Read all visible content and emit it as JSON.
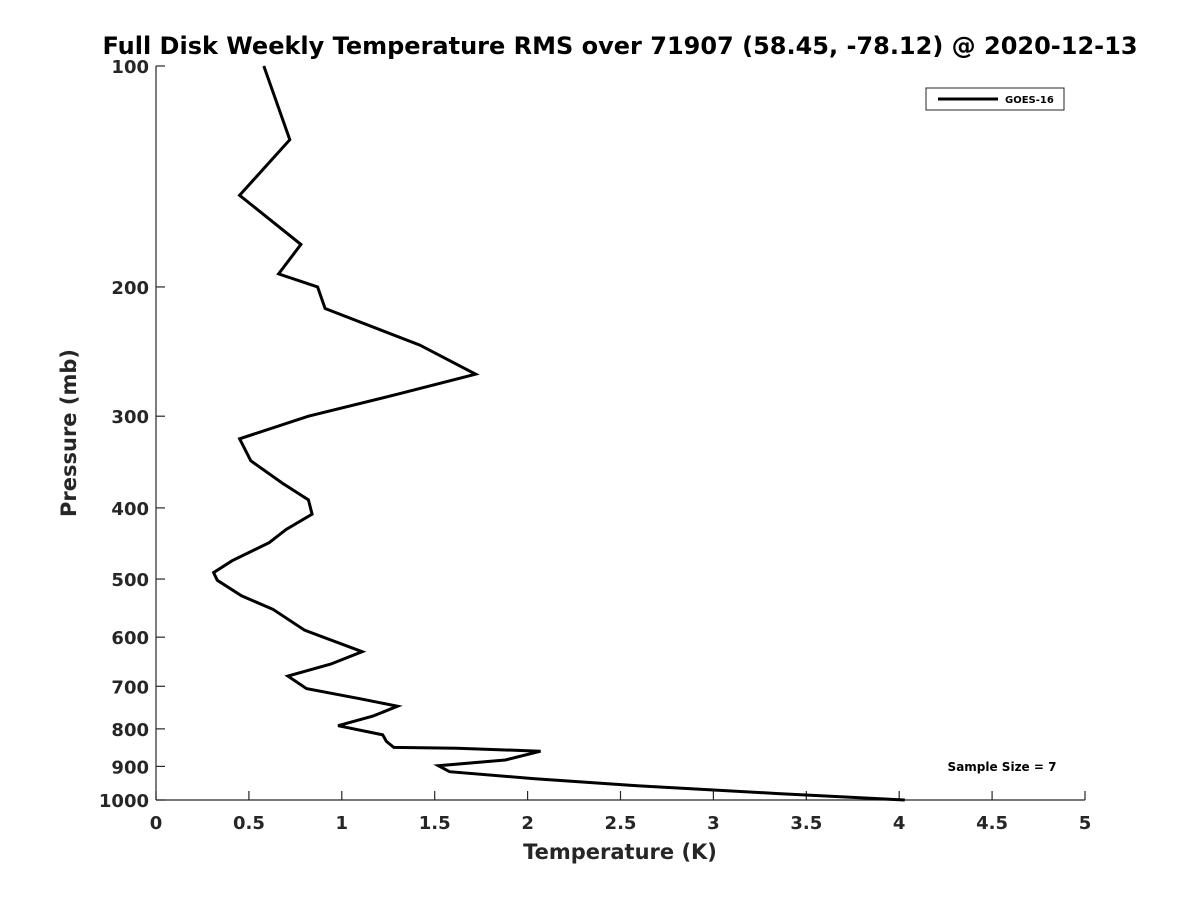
{
  "chart_data": {
    "type": "line",
    "title": "Full Disk Weekly Temperature RMS over 71907 (58.45, -78.12) @ 2020-12-13",
    "xlabel": "Temperature (K)",
    "ylabel": "Pressure (mb)",
    "xlim": [
      0,
      5
    ],
    "ylim": [
      100,
      1000
    ],
    "y_scale": "log",
    "y_reversed": true,
    "x_ticks": [
      0,
      0.5,
      1,
      1.5,
      2,
      2.5,
      3,
      3.5,
      4,
      4.5,
      5
    ],
    "x_tick_labels": [
      "0",
      "0.5",
      "1",
      "1.5",
      "2",
      "2.5",
      "3",
      "3.5",
      "4",
      "4.5",
      "5"
    ],
    "y_ticks": [
      100,
      200,
      300,
      400,
      500,
      600,
      700,
      800,
      900,
      1000
    ],
    "y_tick_labels": [
      "100",
      "200",
      "300",
      "400",
      "500",
      "600",
      "700",
      "800",
      "900",
      "1000"
    ],
    "grid": false,
    "legend_position": "top-right",
    "annotation": "Sample Size = 7",
    "series": [
      {
        "name": "GOES-16",
        "color": "#000000",
        "points": [
          [
            0.58,
            100
          ],
          [
            0.72,
            126
          ],
          [
            0.45,
            150
          ],
          [
            0.78,
            175
          ],
          [
            0.66,
            192
          ],
          [
            0.87,
            200
          ],
          [
            0.91,
            214
          ],
          [
            1.42,
            240
          ],
          [
            1.72,
            263
          ],
          [
            1.3,
            280
          ],
          [
            0.82,
            300
          ],
          [
            0.45,
            322
          ],
          [
            0.51,
            345
          ],
          [
            0.68,
            370
          ],
          [
            0.82,
            390
          ],
          [
            0.84,
            408
          ],
          [
            0.7,
            428
          ],
          [
            0.61,
            446
          ],
          [
            0.41,
            472
          ],
          [
            0.31,
            490
          ],
          [
            0.33,
            502
          ],
          [
            0.46,
            527
          ],
          [
            0.63,
            550
          ],
          [
            0.8,
            587
          ],
          [
            1.11,
            628
          ],
          [
            0.94,
            653
          ],
          [
            0.71,
            678
          ],
          [
            0.81,
            705
          ],
          [
            1.1,
            728
          ],
          [
            1.3,
            745
          ],
          [
            1.17,
            768
          ],
          [
            0.98,
            792
          ],
          [
            1.22,
            815
          ],
          [
            1.24,
            832
          ],
          [
            1.28,
            848
          ],
          [
            1.62,
            850
          ],
          [
            2.07,
            858
          ],
          [
            1.88,
            882
          ],
          [
            1.52,
            898
          ],
          [
            1.58,
            915
          ],
          [
            2.03,
            935
          ],
          [
            2.55,
            955
          ],
          [
            3.35,
            980
          ],
          [
            4.03,
            1000
          ]
        ]
      }
    ]
  }
}
